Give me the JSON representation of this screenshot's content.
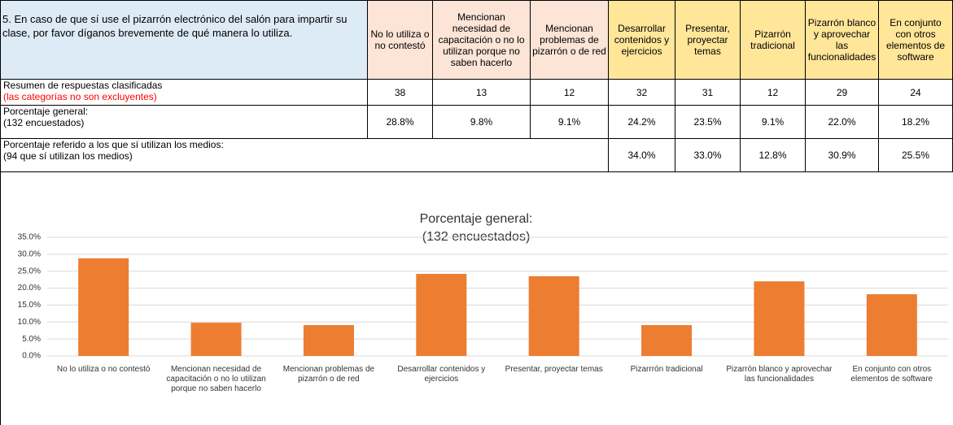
{
  "table": {
    "question": "5. En caso de que sí use el pizarrón electrónico del salón para impartir su clase, por favor díganos brevemente de qué manera lo utiliza.",
    "columns": [
      "No lo utiliza o no contestó",
      "Mencionan necesidad de capacitación o no lo utilizan porque no saben hacerlo",
      "Mencionan problemas de pizarrón o de red",
      "Desarrollar contenidos y ejercicios",
      "Presentar, proyectar temas",
      "Pizarrón tradicional",
      "Pizarrón blanco y aprovechar las funcionalidades",
      "En conjunto con otros elementos de software"
    ],
    "rows": [
      {
        "label": "Resumen de respuestas clasificadas",
        "note": "(las categorías no son excluyentes)",
        "values": [
          "38",
          "13",
          "12",
          "32",
          "31",
          "12",
          "29",
          "24"
        ]
      },
      {
        "label": "Porcentaje general:",
        "note": "(132 encuestados)",
        "values": [
          "28.8%",
          "9.8%",
          "9.1%",
          "24.2%",
          "23.5%",
          "9.1%",
          "22.0%",
          "18.2%"
        ]
      },
      {
        "label": "Porcentaje referido a los que sí utilizan los medios:",
        "note": "(94 que sí utilizan los medios)",
        "values": [
          "34.0%",
          "33.0%",
          "12.8%",
          "30.9%",
          "25.5%"
        ]
      }
    ]
  },
  "chart_data": {
    "type": "bar",
    "title": "Porcentaje general:",
    "subtitle": "(132 encuestados)",
    "categories": [
      "No lo utiliza o no contestó",
      "Mencionan necesidad de capacitación o no lo utilizan porque no saben hacerlo",
      "Mencionan problemas de pizarrón o de red",
      "Desarrollar contenidos y ejercicios",
      "Presentar, proyectar temas",
      "Pizarrrón tradicional",
      "Pizarrón blanco y aprovechar las funcionalidades",
      "En conjunto con otros elementos de software"
    ],
    "values": [
      28.8,
      9.8,
      9.1,
      24.2,
      23.5,
      9.1,
      22.0,
      18.2
    ],
    "color": "#ed7d31",
    "ylim": [
      0,
      35
    ],
    "yticks": [
      {
        "value": 0,
        "label": "0.0%"
      },
      {
        "value": 5,
        "label": "5.0%"
      },
      {
        "value": 10,
        "label": "10.0%"
      },
      {
        "value": 15,
        "label": "15.0%"
      },
      {
        "value": 20,
        "label": "20.0%"
      },
      {
        "value": 25,
        "label": "25.0%"
      },
      {
        "value": 30,
        "label": "30.0%"
      },
      {
        "value": 35,
        "label": "35.0%"
      }
    ],
    "grid": true
  }
}
